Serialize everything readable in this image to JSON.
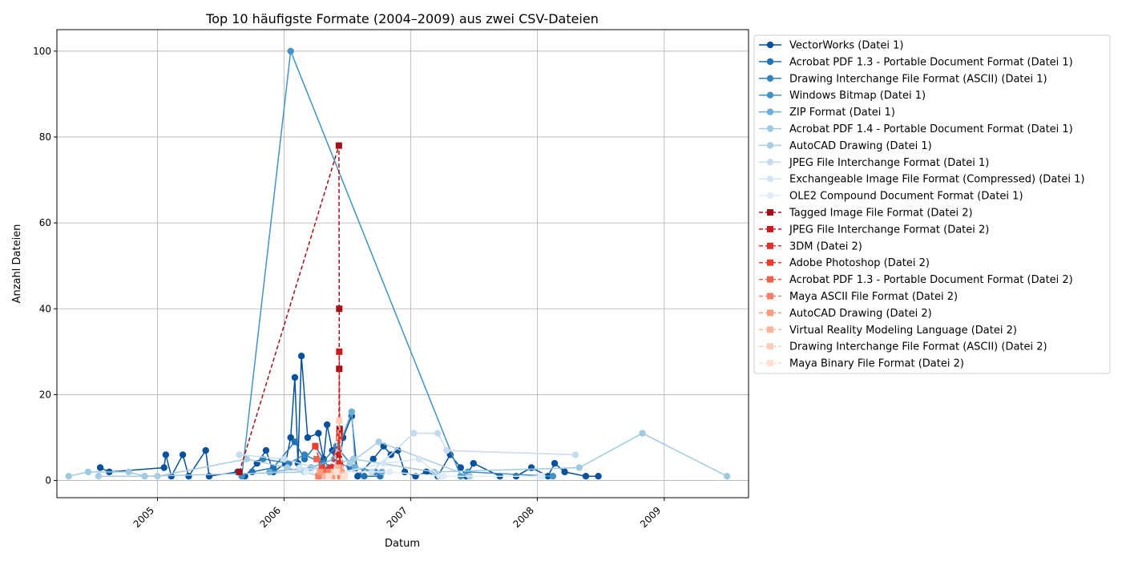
{
  "chart_data": {
    "type": "line",
    "title": "Top 10 häufigste Formate (2004–2009) aus zwei CSV-Dateien",
    "xlabel": "Datum",
    "ylabel": "Anzahl Dateien",
    "x_ticks": [
      "2005",
      "2006",
      "2007",
      "2008",
      "2009"
    ],
    "y_ticks": [
      "0",
      "20",
      "40",
      "60",
      "80",
      "100"
    ],
    "xlim": [
      "2004-03-17",
      "2009-09-01"
    ],
    "ylim": [
      -4,
      105
    ],
    "grid": true,
    "legend_position": "outside-right",
    "series": [
      {
        "name": "VectorWorks (Datei 1)",
        "color": "#08519c",
        "marker": "circle",
        "dash": "solid",
        "points": [
          [
            "2004-07-20",
            3
          ],
          [
            "2004-08-15",
            2
          ],
          [
            "2005-01-20",
            3
          ],
          [
            "2005-01-25",
            6
          ],
          [
            "2005-02-10",
            1
          ],
          [
            "2005-03-15",
            6
          ],
          [
            "2005-04-01",
            1
          ],
          [
            "2005-05-20",
            7
          ],
          [
            "2005-05-30",
            1
          ],
          [
            "2005-08-20",
            2
          ],
          [
            "2005-09-10",
            1
          ],
          [
            "2005-10-15",
            4
          ],
          [
            "2005-11-10",
            7
          ],
          [
            "2005-12-01",
            2
          ],
          [
            "2006-01-05",
            4
          ],
          [
            "2006-01-20",
            10
          ],
          [
            "2006-02-01",
            24
          ],
          [
            "2006-02-10",
            4
          ],
          [
            "2006-02-20",
            29
          ],
          [
            "2006-03-10",
            10
          ],
          [
            "2006-04-10",
            11
          ],
          [
            "2006-04-25",
            5
          ],
          [
            "2006-05-05",
            13
          ],
          [
            "2006-05-20",
            7
          ],
          [
            "2006-06-05",
            2
          ],
          [
            "2006-06-20",
            10
          ],
          [
            "2006-07-15",
            15
          ],
          [
            "2006-08-01",
            1
          ],
          [
            "2006-09-15",
            5
          ],
          [
            "2006-10-15",
            8
          ],
          [
            "2006-11-05",
            6
          ],
          [
            "2006-11-25",
            7
          ],
          [
            "2006-12-15",
            2
          ],
          [
            "2007-01-15",
            1
          ],
          [
            "2007-02-15",
            2
          ],
          [
            "2007-03-20",
            1
          ],
          [
            "2007-04-25",
            6
          ],
          [
            "2007-05-25",
            3
          ],
          [
            "2007-06-10",
            1
          ],
          [
            "2007-07-01",
            4
          ],
          [
            "2007-09-15",
            1
          ],
          [
            "2007-11-01",
            1
          ],
          [
            "2007-12-15",
            3
          ],
          [
            "2008-02-01",
            1
          ],
          [
            "2008-02-20",
            4
          ],
          [
            "2008-03-20",
            2
          ],
          [
            "2008-05-20",
            1
          ],
          [
            "2008-06-25",
            1
          ]
        ]
      },
      {
        "name": "Acrobat PDF 1.3 - Portable Document Format (Datei 1)",
        "color": "#2171b5",
        "marker": "circle",
        "dash": "solid",
        "points": [
          [
            "2005-10-01",
            2
          ],
          [
            "2005-12-01",
            3
          ],
          [
            "2006-02-01",
            9
          ],
          [
            "2006-03-01",
            5
          ],
          [
            "2006-04-01",
            8
          ],
          [
            "2006-05-10",
            3
          ],
          [
            "2006-06-10",
            4
          ],
          [
            "2006-07-10",
            3
          ],
          [
            "2006-08-20",
            1
          ],
          [
            "2006-10-05",
            1
          ]
        ]
      },
      {
        "name": "Drawing Interchange File Format (ASCII) (Datei 1)",
        "color": "#3182bd",
        "marker": "circle",
        "dash": "solid",
        "points": [
          [
            "2005-11-01",
            5
          ],
          [
            "2006-01-15",
            4
          ],
          [
            "2006-03-01",
            6
          ],
          [
            "2006-04-20",
            4
          ],
          [
            "2006-06-01",
            8
          ],
          [
            "2006-07-20",
            3
          ],
          [
            "2006-09-20",
            2
          ]
        ]
      },
      {
        "name": "Windows Bitmap (Datei 1)",
        "color": "#4292c6",
        "marker": "circle",
        "dash": "solid",
        "points": [
          [
            "2005-09-01",
            1
          ],
          [
            "2006-01-20",
            100
          ],
          [
            "2007-05-25",
            1
          ],
          [
            "2007-06-15",
            2
          ],
          [
            "2008-02-15",
            1
          ]
        ]
      },
      {
        "name": "ZIP Format (Datei 1)",
        "color": "#6baed6",
        "marker": "circle",
        "dash": "solid",
        "points": [
          [
            "2005-11-20",
            2
          ],
          [
            "2006-03-20",
            3
          ],
          [
            "2006-05-25",
            5
          ],
          [
            "2006-07-15",
            16
          ],
          [
            "2006-07-25",
            3
          ],
          [
            "2006-10-10",
            2
          ]
        ]
      },
      {
        "name": "Acrobat PDF 1.4 - Portable Document Format (Datei 1)",
        "color": "#9ecae1",
        "marker": "circle",
        "dash": "solid",
        "points": [
          [
            "2004-04-20",
            1
          ],
          [
            "2004-06-15",
            2
          ],
          [
            "2004-10-10",
            2
          ],
          [
            "2004-11-25",
            1
          ],
          [
            "2006-03-01",
            2
          ],
          [
            "2006-07-20",
            5
          ],
          [
            "2007-03-10",
            2
          ],
          [
            "2008-05-01",
            3
          ],
          [
            "2008-10-30",
            11
          ],
          [
            "2009-07-01",
            1
          ]
        ]
      },
      {
        "name": "AutoCAD Drawing (Datei 1)",
        "color": "#a9cce3",
        "marker": "circle",
        "dash": "solid",
        "points": [
          [
            "2004-07-15",
            1
          ],
          [
            "2005-01-01",
            1
          ],
          [
            "2005-09-15",
            5
          ],
          [
            "2006-01-10",
            3
          ],
          [
            "2006-04-15",
            1
          ],
          [
            "2006-07-10",
            4
          ],
          [
            "2006-10-01",
            9
          ],
          [
            "2007-06-20",
            1
          ]
        ]
      },
      {
        "name": "JPEG File Interchange Format (Datei 1)",
        "color": "#c6dbef",
        "marker": "circle",
        "dash": "solid",
        "points": [
          [
            "2005-08-25",
            6
          ],
          [
            "2006-01-01",
            5
          ],
          [
            "2006-05-20",
            2
          ],
          [
            "2006-09-10",
            2
          ],
          [
            "2007-01-10",
            11
          ],
          [
            "2007-03-20",
            11
          ],
          [
            "2007-04-15",
            7
          ],
          [
            "2008-04-20",
            6
          ]
        ]
      },
      {
        "name": "Exchangeable Image File Format (Compressed) (Datei 1)",
        "color": "#d3e4f3",
        "marker": "circle",
        "dash": "solid",
        "points": [
          [
            "2006-02-15",
            3
          ],
          [
            "2006-06-20",
            2
          ],
          [
            "2006-10-15",
            4
          ],
          [
            "2007-01-25",
            5
          ],
          [
            "2007-03-25",
            1
          ],
          [
            "2008-01-15",
            1
          ]
        ]
      },
      {
        "name": "OLE2 Compound Document Format (Datei 1)",
        "color": "#e0ecf7",
        "marker": "circle",
        "dash": "solid",
        "points": [
          [
            "2006-03-05",
            2
          ],
          [
            "2006-06-15",
            2
          ],
          [
            "2006-11-01",
            2
          ],
          [
            "2007-04-05",
            1
          ],
          [
            "2008-01-10",
            1
          ]
        ]
      },
      {
        "name": "Tagged Image File Format (Datei 2)",
        "color": "#a50f15",
        "marker": "square",
        "dash": "dashed",
        "points": [
          [
            "2005-08-25",
            2
          ],
          [
            "2006-06-08",
            78
          ],
          [
            "2006-06-09",
            40
          ],
          [
            "2006-06-09",
            26
          ],
          [
            "2006-06-10",
            12
          ],
          [
            "2006-06-11",
            4
          ]
        ]
      },
      {
        "name": "JPEG File Interchange Format (Datei 2)",
        "color": "#cb181d",
        "marker": "square",
        "dash": "dashed",
        "points": [
          [
            "2006-05-01",
            2
          ],
          [
            "2006-06-08",
            6
          ],
          [
            "2006-06-09",
            30
          ],
          [
            "2006-06-10",
            11
          ],
          [
            "2006-06-11",
            3
          ]
        ]
      },
      {
        "name": "3DM (Datei 2)",
        "color": "#e2312a",
        "marker": "square",
        "dash": "dashed",
        "points": [
          [
            "2006-05-15",
            3
          ],
          [
            "2006-06-09",
            10
          ],
          [
            "2006-06-10",
            4
          ]
        ]
      },
      {
        "name": "Adobe Photoshop (Datei 2)",
        "color": "#ef3b2c",
        "marker": "square",
        "dash": "dashed",
        "points": [
          [
            "2006-04-01",
            8
          ],
          [
            "2006-04-20",
            3
          ],
          [
            "2006-06-09",
            2
          ]
        ]
      },
      {
        "name": "Acrobat PDF 1.3 - Portable Document Format (Datei 2)",
        "color": "#f0604a",
        "marker": "square",
        "dash": "dashed",
        "points": [
          [
            "2006-04-05",
            5
          ],
          [
            "2006-04-25",
            2
          ],
          [
            "2006-06-10",
            3
          ]
        ]
      },
      {
        "name": "Maya ASCII File Format (Datei 2)",
        "color": "#fb7e63",
        "marker": "square",
        "dash": "dashed",
        "points": [
          [
            "2006-04-10",
            1
          ],
          [
            "2006-05-10",
            2
          ],
          [
            "2006-06-12",
            1
          ]
        ]
      },
      {
        "name": "AutoCAD Drawing (Datei 2)",
        "color": "#fc9a7c",
        "marker": "square",
        "dash": "dashed",
        "points": [
          [
            "2006-04-15",
            2
          ],
          [
            "2006-05-20",
            1
          ],
          [
            "2006-06-15",
            2
          ]
        ]
      },
      {
        "name": "Virtual Reality Modeling Language (Datei 2)",
        "color": "#fcb59a",
        "marker": "square",
        "dash": "dashed",
        "points": [
          [
            "2006-05-01",
            1
          ],
          [
            "2006-06-05",
            3
          ],
          [
            "2006-06-20",
            1
          ]
        ]
      },
      {
        "name": "Drawing Interchange File Format (ASCII) (Datei 2)",
        "color": "#fdccb8",
        "marker": "square",
        "dash": "dashed",
        "points": [
          [
            "2006-05-25",
            2
          ],
          [
            "2006-06-09",
            14
          ],
          [
            "2006-06-20",
            1
          ]
        ]
      },
      {
        "name": "Maya Binary File Format (Datei 2)",
        "color": "#fee0d2",
        "marker": "square",
        "dash": "dashed",
        "points": [
          [
            "2006-05-10",
            1
          ],
          [
            "2006-06-01",
            2
          ],
          [
            "2006-06-25",
            1
          ]
        ]
      }
    ]
  }
}
